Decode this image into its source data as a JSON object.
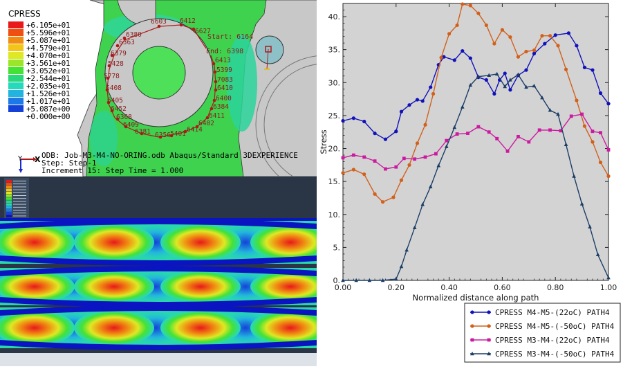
{
  "viewport": {
    "legend_title": "CPRESS",
    "legend_values": [
      "+6.105e+01",
      "+5.596e+01",
      "+5.087e+01",
      "+4.579e+01",
      "+4.070e+01",
      "+3.561e+01",
      "+3.052e+01",
      "+2.544e+01",
      "+2.035e+01",
      "+1.526e+01",
      "+1.017e+01",
      "+5.087e+00",
      "+0.000e+00"
    ],
    "legend_colors": [
      "#e8181b",
      "#ef5010",
      "#f08c12",
      "#f2c518",
      "#dfe824",
      "#9be52a",
      "#45e236",
      "#28d87a",
      "#26d8bc",
      "#22b4de",
      "#1c7ae6",
      "#1442d8",
      "#0a10c8"
    ],
    "node_labels": [
      "6603",
      "6412",
      "6627",
      "6380",
      "6363",
      "6379",
      "5428",
      "5778",
      "6408",
      "6405",
      "6452",
      "6368",
      "6409",
      "6381",
      "6356",
      "5401",
      "6414",
      "6402",
      "6411",
      "6384",
      "6400",
      "6410",
      "7083",
      "5399",
      "6413"
    ],
    "start_label": "Start: 6164",
    "end_label": "End: 6398",
    "odb_line": "ODB: Job-M3-M4-NO-ORING.odb    Abaqus/Standard 3DEXPERIENCE",
    "step_line": "Step: Step-1",
    "increment_line": "Increment    15: Step Time =    1.000",
    "axis_x": "X",
    "axis_y": "Y"
  },
  "colors": {
    "plot_bg": "#d3d3d3",
    "contour_green": "#3fd24f",
    "model_gray": "#c8c8c8",
    "path_marker": "#b01818",
    "node_text": "#8a1a1a"
  },
  "chart_data": {
    "type": "line",
    "xlabel": "Normalized distance along path",
    "ylabel": "Stress",
    "xlim": [
      0,
      1
    ],
    "ylim": [
      0,
      42
    ],
    "xticks": [
      "0.00",
      "0.20",
      "0.40",
      "0.60",
      "0.80",
      "1.00"
    ],
    "yticks": [
      "0.",
      "5.",
      "10.",
      "15.",
      "20.",
      "25.",
      "30.",
      "35.",
      "40."
    ],
    "grid": false,
    "legend_position": "bottom-right",
    "series": [
      {
        "name": "CPRESS M4-M5-(22oC) PATH4",
        "color": "#1111bb",
        "marker": "circle",
        "x": [
          0,
          0.04,
          0.08,
          0.12,
          0.16,
          0.2,
          0.22,
          0.25,
          0.28,
          0.3,
          0.33,
          0.36,
          0.38,
          0.42,
          0.45,
          0.48,
          0.51,
          0.54,
          0.57,
          0.59,
          0.61,
          0.63,
          0.66,
          0.69,
          0.72,
          0.76,
          0.8,
          0.85,
          0.88,
          0.91,
          0.94,
          0.97,
          1.0
        ],
        "y": [
          24.2,
          24.6,
          24.1,
          22.3,
          21.4,
          22.6,
          25.6,
          26.6,
          27.4,
          27.2,
          29.3,
          32.7,
          33.9,
          33.4,
          34.8,
          33.7,
          30.8,
          30.4,
          28.3,
          30.4,
          31.4,
          28.9,
          31.1,
          31.9,
          34.4,
          35.9,
          37.2,
          37.5,
          35.6,
          32.3,
          31.9,
          28.4,
          26.8
        ]
      },
      {
        "name": "CPRESS M4-M5-(-50oC) PATH4",
        "color": "#d2601a",
        "marker": "circle",
        "x": [
          0,
          0.04,
          0.08,
          0.12,
          0.15,
          0.19,
          0.22,
          0.25,
          0.28,
          0.31,
          0.34,
          0.37,
          0.4,
          0.43,
          0.45,
          0.48,
          0.51,
          0.54,
          0.57,
          0.6,
          0.63,
          0.66,
          0.69,
          0.72,
          0.75,
          0.78,
          0.81,
          0.84,
          0.88,
          0.91,
          0.94,
          0.97,
          1.0
        ],
        "y": [
          16.3,
          16.8,
          16.1,
          13.1,
          11.9,
          12.6,
          15.2,
          17.5,
          20.8,
          23.6,
          28.3,
          33.8,
          37.4,
          38.7,
          41.9,
          41.7,
          40.5,
          38.7,
          35.9,
          38.0,
          36.9,
          33.9,
          34.7,
          34.9,
          37.1,
          37.1,
          35.6,
          32.0,
          27.3,
          23.4,
          21.0,
          17.9,
          15.8
        ]
      },
      {
        "name": "CPRESS M3-M4-(22oC) PATH4",
        "color": "#cc1aa0",
        "marker": "square",
        "x": [
          0,
          0.04,
          0.08,
          0.12,
          0.16,
          0.2,
          0.23,
          0.27,
          0.31,
          0.35,
          0.39,
          0.43,
          0.47,
          0.51,
          0.55,
          0.58,
          0.62,
          0.66,
          0.7,
          0.74,
          0.78,
          0.82,
          0.86,
          0.9,
          0.94,
          0.97,
          1.0
        ],
        "y": [
          18.6,
          19.0,
          18.7,
          18.1,
          16.9,
          17.2,
          18.5,
          18.4,
          18.7,
          19.2,
          21.2,
          22.2,
          22.3,
          23.3,
          22.5,
          21.5,
          19.6,
          21.8,
          21.0,
          22.8,
          22.8,
          22.7,
          24.9,
          25.2,
          22.6,
          22.4,
          19.8
        ]
      },
      {
        "name": "CPRESS M3-M4-(-50oC) PATH4",
        "color": "#1b3d66",
        "marker": "triangle",
        "x": [
          0,
          0.05,
          0.1,
          0.15,
          0.2,
          0.22,
          0.24,
          0.27,
          0.3,
          0.33,
          0.36,
          0.39,
          0.42,
          0.45,
          0.48,
          0.51,
          0.55,
          0.58,
          0.61,
          0.63,
          0.66,
          0.69,
          0.72,
          0.75,
          0.78,
          0.81,
          0.84,
          0.87,
          0.9,
          0.93,
          0.96,
          1.0
        ],
        "y": [
          0.0,
          0.0,
          0.0,
          0.0,
          0.2,
          2.1,
          4.6,
          8.0,
          11.5,
          14.2,
          17.4,
          20.3,
          23.2,
          26.3,
          29.6,
          30.9,
          31.1,
          31.3,
          29.4,
          30.4,
          31.2,
          29.3,
          29.5,
          27.7,
          25.8,
          25.2,
          20.6,
          15.8,
          11.6,
          8.1,
          3.9,
          0.4
        ]
      }
    ]
  }
}
